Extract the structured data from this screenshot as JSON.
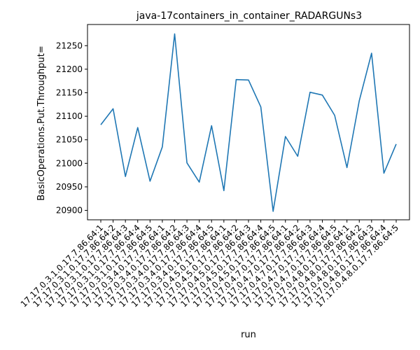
{
  "chart_data": {
    "type": "line",
    "title": "java-17containers_in_container_RADARGUNs3",
    "xlabel": "run",
    "ylabel": "BasicOperations.Put.Throughput=",
    "ylim": [
      20880,
      21295
    ],
    "yticks": [
      20900,
      20950,
      21000,
      21050,
      21100,
      21150,
      21200,
      21250
    ],
    "grid": false,
    "legend": "none",
    "line_color": "#1f77b4",
    "categories": [
      "17.17.0.3.1.0.17.7.86.64:1",
      "17.17.0.3.1.0.17.7.86.64:2",
      "17.17.0.3.1.0.17.7.86.64:3",
      "17.17.0.3.1.0.17.7.86.64:4",
      "17.17.0.3.1.0.17.7.86.64:5",
      "17.17.0.3.4.0.17.7.86.64:1",
      "17.17.0.3.4.0.17.7.86.64:2",
      "17.17.0.3.4.0.17.7.86.64:3",
      "17.17.0.3.4.0.17.7.86.64:4",
      "17.17.0.3.4.0.17.7.86.64:5",
      "17.17.0.4.5.0.17.7.86.64:1",
      "17.17.0.4.5.0.17.7.86.64:2",
      "17.17.0.4.5.0.17.7.86.64:3",
      "17.17.0.4.5.0.17.7.86.64:4",
      "17.17.0.4.5.0.17.7.86.64:5",
      "17.17.0.4.7.0.17.7.86.64:1",
      "17.17.0.4.7.0.17.7.86.64:2",
      "17.17.0.4.7.0.17.7.86.64:3",
      "17.17.0.4.7.0.17.7.86.64:4",
      "17.17.0.4.7.0.17.7.86.64:5",
      "17.17.0.4.8.0.17.7.86.64:1",
      "17.17.0.4.8.0.17.7.86.64:2",
      "17.17.0.4.8.0.17.7.86.64:3",
      "17.17.0.4.8.0.17.7.86.64:4",
      "17.17.0.4.8.0.17.7.86.64:5"
    ],
    "values": [
      21082,
      21116,
      20972,
      21076,
      20962,
      21035,
      21275,
      21001,
      20960,
      21080,
      20942,
      21178,
      21177,
      21120,
      20898,
      21057,
      21015,
      21151,
      21145,
      21102,
      20991,
      21133,
      21234,
      20979,
      21041
    ]
  }
}
